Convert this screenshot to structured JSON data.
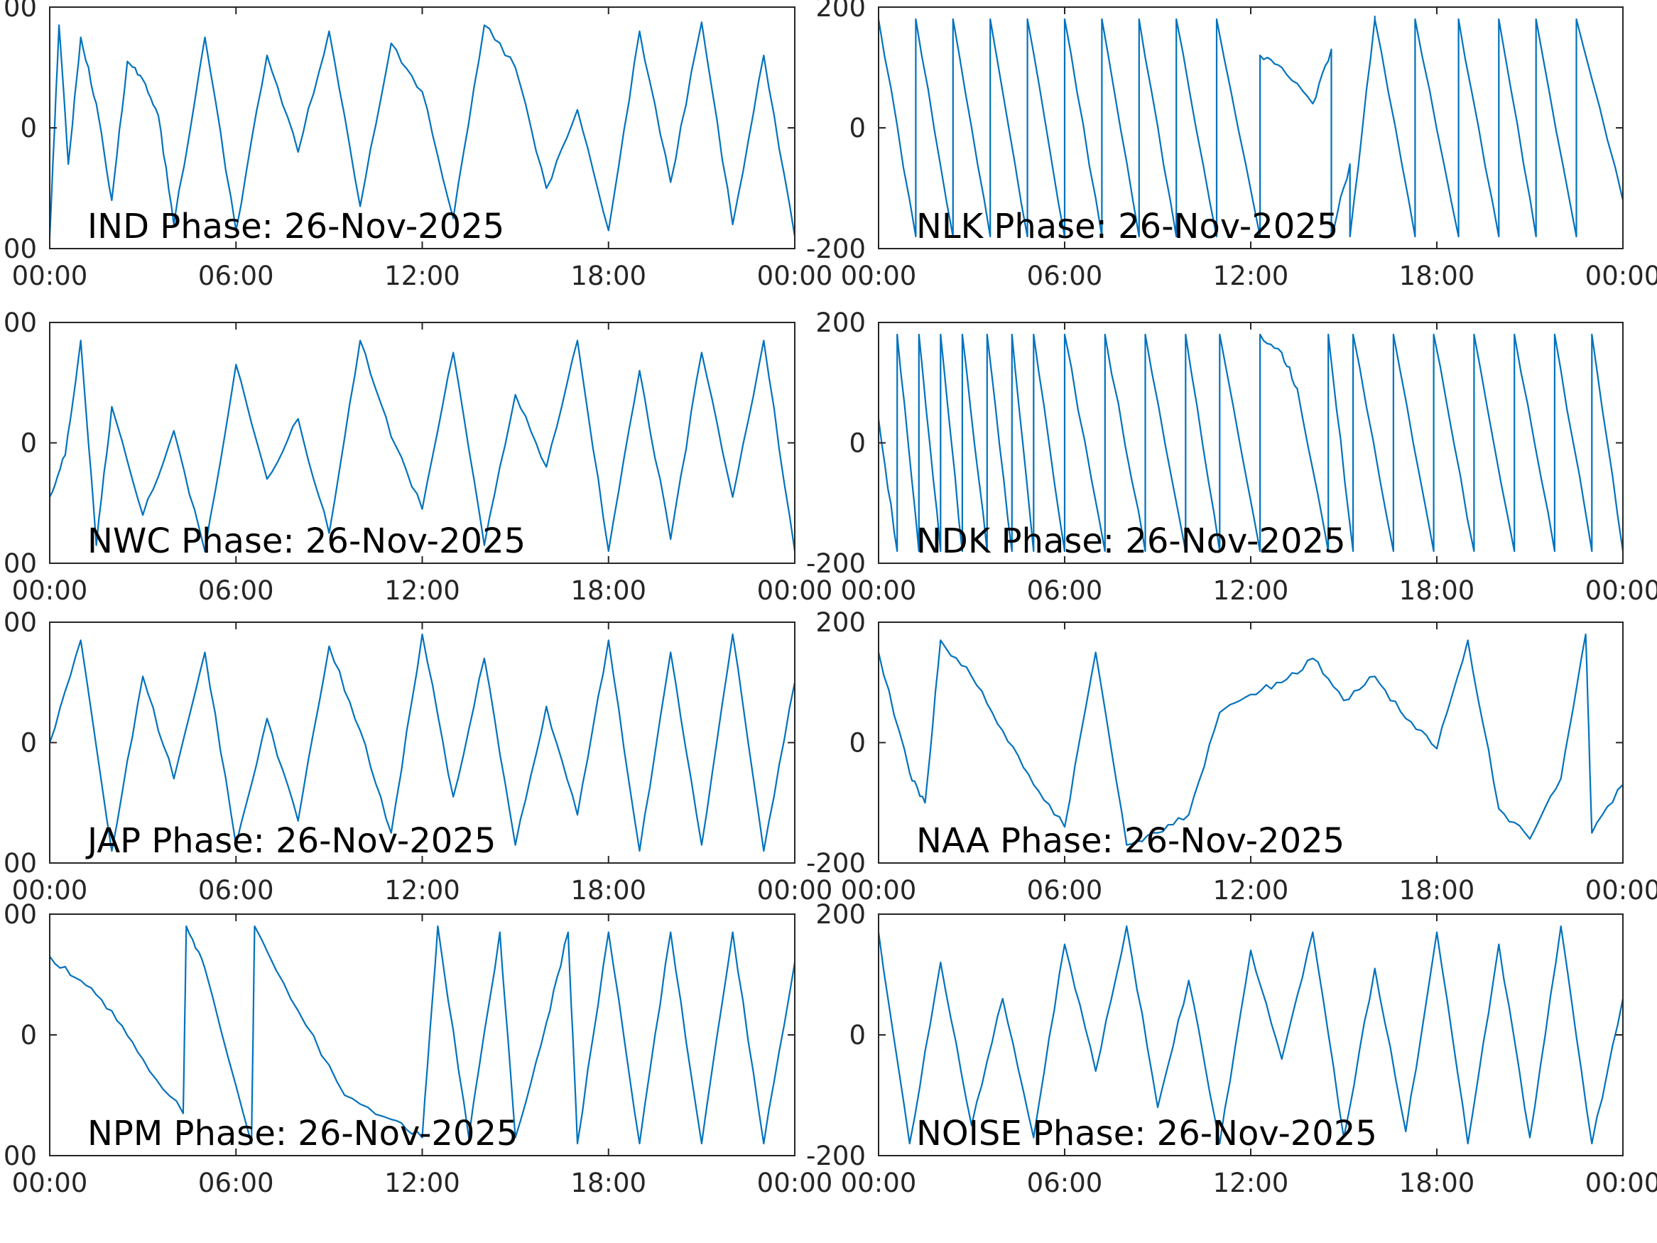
{
  "figure": {
    "colors": {
      "line": "#0072BD",
      "axes": "#262626",
      "text": "#000000"
    }
  },
  "chart_data": [
    {
      "type": "line",
      "title": "IND Phase: 26-Nov-2025",
      "x_ticks": [
        "00:00",
        "06:00",
        "12:00",
        "18:00",
        "00:00"
      ],
      "x_range_hours": [
        0,
        24
      ],
      "y_ticks": [
        "00",
        "0",
        "00"
      ],
      "ylim": [
        -200,
        200
      ],
      "series": [
        {
          "values_description": "phase in degrees, mostly rapid wrapping between about -180 and 180 throughout the day",
          "x": [
            0,
            0.3,
            0.6,
            1.0,
            1.5,
            2.0,
            2.5,
            3.0,
            3.5,
            4.0,
            5.0,
            6.0,
            7.0,
            8.0,
            9.0,
            10.0,
            11.0,
            12.0,
            13.0,
            14.0,
            15.0,
            16.0,
            17.0,
            18.0,
            19.0,
            20.0,
            21.0,
            22.0,
            23.0,
            24.0
          ],
          "y": [
            -180,
            170,
            -60,
            150,
            40,
            -120,
            110,
            80,
            20,
            -160,
            150,
            -170,
            120,
            -40,
            160,
            -130,
            140,
            60,
            -150,
            170,
            100,
            -100,
            30,
            -170,
            160,
            -90,
            175,
            -160,
            120,
            -180
          ]
        }
      ]
    },
    {
      "type": "line",
      "title": "NLK Phase: 26-Nov-2025",
      "x_ticks": [
        "00:00",
        "06:00",
        "12:00",
        "18:00",
        "00:00"
      ],
      "x_range_hours": [
        0,
        24
      ],
      "y_ticks": [
        "200",
        "0",
        "-200"
      ],
      "ylim": [
        -200,
        200
      ],
      "series": [
        {
          "values_description": "sawtooth phase ramps wrapping roughly every hour, with a disturbed segment near 13:30-15:30",
          "x": [
            0,
            1.2,
            1.2,
            2.4,
            2.4,
            3.6,
            3.6,
            4.8,
            4.8,
            6.0,
            6.0,
            7.2,
            7.2,
            8.4,
            8.4,
            9.6,
            9.6,
            10.9,
            10.9,
            12.3,
            12.3,
            13.0,
            14.0,
            14.6,
            14.6,
            15.2,
            15.2,
            16.0,
            16.0,
            17.3,
            17.3,
            18.7,
            18.7,
            20.0,
            20.0,
            21.2,
            21.2,
            22.5,
            22.5,
            24.0
          ],
          "y": [
            180,
            -180,
            180,
            -180,
            180,
            -180,
            180,
            -180,
            180,
            -180,
            180,
            -180,
            180,
            -180,
            180,
            -180,
            180,
            -180,
            180,
            -180,
            120,
            100,
            40,
            130,
            -180,
            -60,
            -180,
            180,
            180,
            -180,
            180,
            -180,
            180,
            -180,
            180,
            -180,
            180,
            -180,
            180,
            -120
          ]
        }
      ]
    },
    {
      "type": "line",
      "title": "NWC Phase: 26-Nov-2025",
      "x_ticks": [
        "00:00",
        "06:00",
        "12:00",
        "18:00",
        "00:00"
      ],
      "x_range_hours": [
        0,
        24
      ],
      "y_ticks": [
        "00",
        "0",
        "00"
      ],
      "ylim": [
        -200,
        200
      ],
      "series": [
        {
          "values_description": "noisy phase wrapping rapidly between about -180 and 180 all day",
          "x": [
            0,
            0.5,
            1.0,
            1.5,
            2.0,
            3.0,
            4.0,
            5.0,
            6.0,
            7.0,
            8.0,
            9.0,
            10.0,
            11.0,
            12.0,
            13.0,
            14.0,
            15.0,
            16.0,
            17.0,
            18.0,
            19.0,
            20.0,
            21.0,
            22.0,
            23.0,
            24.0
          ],
          "y": [
            -90,
            -20,
            170,
            -170,
            60,
            -120,
            20,
            -180,
            130,
            -60,
            40,
            -150,
            170,
            10,
            -110,
            150,
            -170,
            80,
            -40,
            170,
            -180,
            120,
            -160,
            150,
            -90,
            170,
            -180
          ]
        }
      ]
    },
    {
      "type": "line",
      "title": "NDK Phase: 26-Nov-2025",
      "x_ticks": [
        "00:00",
        "06:00",
        "12:00",
        "18:00",
        "00:00"
      ],
      "x_range_hours": [
        0,
        24
      ],
      "y_ticks": [
        "200",
        "0",
        "-200"
      ],
      "ylim": [
        -200,
        200
      ],
      "series": [
        {
          "values_description": "sawtooth phase ramps wrapping roughly every hour, with a disturbed segment near 12:30-14:30",
          "x": [
            0,
            0.6,
            0.6,
            1.3,
            1.3,
            2.0,
            2.0,
            2.7,
            2.7,
            3.5,
            3.5,
            4.3,
            4.3,
            5.0,
            5.0,
            6.0,
            6.0,
            7.3,
            7.3,
            8.6,
            8.6,
            9.9,
            9.9,
            11.0,
            11.0,
            12.3,
            12.3,
            13.0,
            13.5,
            14.5,
            14.5,
            15.3,
            15.3,
            16.6,
            16.6,
            17.9,
            17.9,
            19.2,
            19.2,
            20.5,
            20.5,
            21.8,
            21.8,
            23.0,
            23.0,
            24.0
          ],
          "y": [
            40,
            -180,
            180,
            -180,
            180,
            -180,
            180,
            -180,
            180,
            -180,
            180,
            -180,
            180,
            -180,
            180,
            -180,
            180,
            -180,
            180,
            -180,
            180,
            -180,
            180,
            -180,
            180,
            -180,
            180,
            150,
            90,
            -180,
            180,
            -180,
            180,
            -180,
            180,
            -180,
            180,
            -180,
            180,
            -180,
            180,
            -180,
            180,
            -180,
            180,
            -180
          ]
        }
      ]
    },
    {
      "type": "line",
      "title": "JAP Phase: 26-Nov-2025",
      "x_ticks": [
        "00:00",
        "06:00",
        "12:00",
        "18:00",
        "00:00"
      ],
      "x_range_hours": [
        0,
        24
      ],
      "y_ticks": [
        "00",
        "0",
        "00"
      ],
      "ylim": [
        -200,
        200
      ],
      "series": [
        {
          "values_description": "noisy phase wrapping rapidly between about -180 and 180 all day",
          "x": [
            0,
            1.0,
            2.0,
            3.0,
            4.0,
            5.0,
            6.0,
            7.0,
            8.0,
            9.0,
            10.0,
            11.0,
            12.0,
            13.0,
            14.0,
            15.0,
            16.0,
            17.0,
            18.0,
            19.0,
            20.0,
            21.0,
            22.0,
            23.0,
            24.0
          ],
          "y": [
            0,
            170,
            -180,
            110,
            -60,
            150,
            -170,
            40,
            -130,
            160,
            20,
            -150,
            180,
            -90,
            140,
            -170,
            60,
            -120,
            170,
            -180,
            150,
            -170,
            180,
            -180,
            100
          ]
        }
      ]
    },
    {
      "type": "line",
      "title": "NAA Phase: 26-Nov-2025",
      "x_ticks": [
        "00:00",
        "06:00",
        "12:00",
        "18:00",
        "00:00"
      ],
      "x_range_hours": [
        0,
        24
      ],
      "y_ticks": [
        "200",
        "0",
        "-200"
      ],
      "ylim": [
        -200,
        200
      ],
      "series": [
        {
          "values_description": "slowly drifting phase with noisy wrapping bursts near 01:30, 05:30-09:00 and 18:00-20:00",
          "x": [
            0,
            1.0,
            1.5,
            2.0,
            3.0,
            4.0,
            5.0,
            6.0,
            7.0,
            8.0,
            9.0,
            10.0,
            11.0,
            12.0,
            13.0,
            14.0,
            15.0,
            16.0,
            17.0,
            18.0,
            19.0,
            20.0,
            21.0,
            22.0,
            22.8,
            23.0,
            24.0
          ],
          "y": [
            150,
            -50,
            -100,
            170,
            110,
            20,
            -70,
            -140,
            150,
            -170,
            -150,
            -120,
            50,
            80,
            100,
            140,
            70,
            110,
            40,
            -10,
            170,
            -110,
            -160,
            -60,
            180,
            -150,
            -70
          ]
        }
      ]
    },
    {
      "type": "line",
      "title": "NPM Phase: 26-Nov-2025",
      "x_ticks": [
        "00:00",
        "06:00",
        "12:00",
        "18:00",
        "00:00"
      ],
      "x_range_hours": [
        0,
        24
      ],
      "y_ticks": [
        "00",
        "0",
        "00"
      ],
      "ylim": [
        -200,
        200
      ],
      "series": [
        {
          "values_description": "slow downward phase ramps with wraps near 04:20 and 06:30, dense wrapping 12:00-15:00, then rapid wrapping after 16:30",
          "x": [
            0,
            1.0,
            2.0,
            3.0,
            4.3,
            4.4,
            5.0,
            6.5,
            6.6,
            8.0,
            9.5,
            11.0,
            12.0,
            12.5,
            13.5,
            14.5,
            15.0,
            16.0,
            16.7,
            17.0,
            18.0,
            19.0,
            20.0,
            21.0,
            22.0,
            23.0,
            24.0
          ],
          "y": [
            130,
            90,
            40,
            -40,
            -130,
            180,
            110,
            -180,
            180,
            40,
            -100,
            -140,
            -170,
            180,
            -170,
            170,
            -170,
            20,
            170,
            -180,
            170,
            -180,
            170,
            -180,
            170,
            -180,
            120
          ]
        }
      ]
    },
    {
      "type": "line",
      "title": "NOISE Phase: 26-Nov-2025",
      "x_ticks": [
        "00:00",
        "06:00",
        "12:00",
        "18:00",
        "00:00"
      ],
      "x_range_hours": [
        0,
        24
      ],
      "y_ticks": [
        "200",
        "0",
        "-200"
      ],
      "ylim": [
        -200,
        200
      ],
      "series": [
        {
          "values_description": "random phase noise spanning about -180 to 180 all day",
          "x": [
            0,
            1.0,
            2.0,
            3.0,
            4.0,
            5.0,
            6.0,
            7.0,
            8.0,
            9.0,
            10.0,
            11.0,
            12.0,
            13.0,
            14.0,
            15.0,
            16.0,
            17.0,
            18.0,
            19.0,
            20.0,
            21.0,
            22.0,
            23.0,
            24.0
          ],
          "y": [
            170,
            -180,
            120,
            -150,
            60,
            -170,
            150,
            -60,
            180,
            -120,
            90,
            -180,
            140,
            -40,
            170,
            -170,
            110,
            -160,
            170,
            -180,
            150,
            -170,
            180,
            -180,
            60
          ]
        }
      ]
    }
  ]
}
